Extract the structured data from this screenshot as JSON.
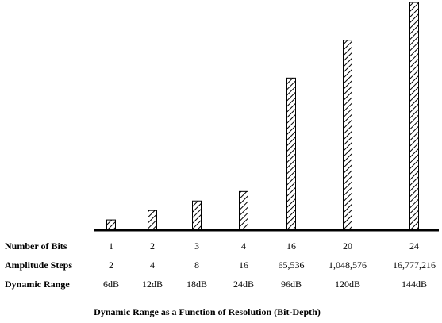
{
  "chart_data": {
    "type": "bar",
    "title": "Dynamic Range as a Function of Resolution (Bit-Depth)",
    "xlabel": "",
    "ylabel": "",
    "categories": [
      "1",
      "2",
      "3",
      "4",
      "16",
      "20",
      "24"
    ],
    "values": [
      6,
      12,
      18,
      24,
      96,
      120,
      144
    ],
    "series": [
      {
        "name": "Dynamic Range (dB)",
        "values": [
          6,
          12,
          18,
          24,
          96,
          120,
          144
        ]
      }
    ],
    "ylim": [
      0,
      144
    ],
    "grid": false,
    "legend": "none",
    "bar_fill": "diagonal-hatch",
    "bar_color": "#000000"
  },
  "table": {
    "rows": [
      {
        "label": "Number of Bits",
        "values": [
          "1",
          "2",
          "3",
          "4",
          "16",
          "20",
          "24"
        ]
      },
      {
        "label": "Amplitude Steps",
        "values": [
          "2",
          "4",
          "8",
          "16",
          "65,536",
          "1,048,576",
          "16,777,216"
        ]
      },
      {
        "label": "Dynamic Range",
        "values": [
          "6dB",
          "12dB",
          "18dB",
          "24dB",
          "96dB",
          "120dB",
          "144dB"
        ]
      }
    ]
  }
}
